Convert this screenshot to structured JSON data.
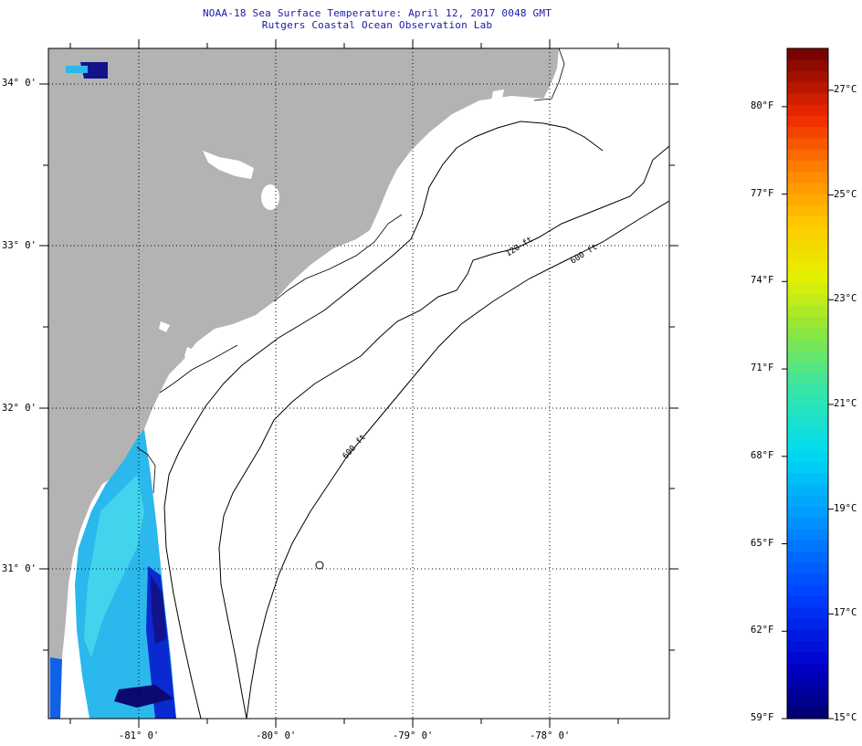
{
  "header": {
    "title": "NOAA-18 Sea Surface Temperature:  April 12, 2017 0048 GMT",
    "subtitle": "Rutgers Coastal Ocean Observation Lab"
  },
  "map": {
    "lat_labels": [
      "34° 0'",
      "33° 0'",
      "32° 0'",
      "31° 0'"
    ],
    "lon_labels": [
      "-81° 0'",
      "-80° 0'",
      "-79° 0'",
      "-78° 0'"
    ],
    "contours": [
      "120 ft",
      "600 ft",
      "600 ft"
    ],
    "colors": {
      "land": "#b3b3b3",
      "ocean": "#ffffff",
      "grid": "#000000",
      "contour": "#000000"
    }
  },
  "colorbar": {
    "fahrenheit": [
      "80°F",
      "77°F",
      "74°F",
      "71°F",
      "68°F",
      "65°F",
      "62°F",
      "59°F"
    ],
    "celsius": [
      "27°C",
      "25°C",
      "23°C",
      "21°C",
      "19°C",
      "17°C",
      "15°C"
    ],
    "range_f": [
      59,
      82
    ],
    "range_c": [
      15,
      27.8
    ]
  }
}
